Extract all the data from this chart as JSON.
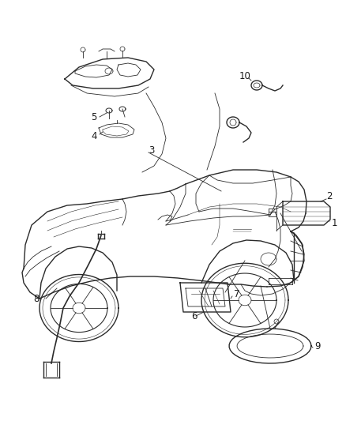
{
  "title": "",
  "background_color": "#ffffff",
  "fig_width": 4.38,
  "fig_height": 5.33,
  "dpi": 100,
  "car_color": "#2a2a2a",
  "label_color": "#1a1a1a",
  "label_fontsize": 8.5,
  "line_color": "#555555"
}
